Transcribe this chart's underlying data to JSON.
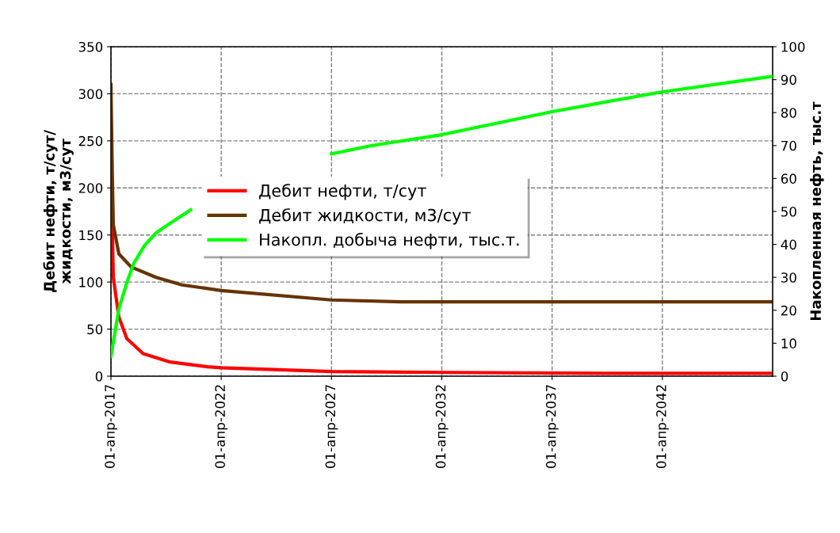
{
  "chart_data": {
    "type": "line",
    "ylabel": "Дебит нефти, т/сут/\nжидкости, м3/сут",
    "y2label": "Накопленная нефть, тыс.т",
    "xlim": [
      "2017-04-01",
      "2047-04-01"
    ],
    "xticks": [
      {
        "value": "2017-04-01",
        "label": "01-апр-2017"
      },
      {
        "value": "2022-04-01",
        "label": "01-апр-2022"
      },
      {
        "value": "2027-04-01",
        "label": "01-апр-2027"
      },
      {
        "value": "2032-04-01",
        "label": "01-апр-2032"
      },
      {
        "value": "2037-04-01",
        "label": "01-апр-2037"
      },
      {
        "value": "2042-04-01",
        "label": "01-апр-2042"
      }
    ],
    "ylim": [
      0,
      350
    ],
    "yticks": [
      0,
      50,
      100,
      150,
      200,
      250,
      300,
      350
    ],
    "y2lim": [
      0,
      100
    ],
    "y2ticks": [
      0,
      10,
      20,
      30,
      40,
      50,
      60,
      70,
      80,
      90,
      100
    ],
    "grid": true,
    "legend": "center left",
    "marker": "none",
    "line_style": "solid",
    "series": [
      {
        "name": "Дебит нефти, т/сут",
        "color": "#ff0000",
        "x": [
          "2017-04-01",
          "2017-04-23",
          "2017-05-10",
          "2017-08-10",
          "2017-12-20",
          "2018-09-15",
          "2019-12-10",
          "2021-08-20",
          "2022-04-01",
          "2027-04-01",
          "2032-05-01",
          "2040-01-15",
          "2047-04-01"
        ],
        "values": [
          215,
          161,
          105,
          63,
          40,
          24,
          15,
          10,
          9,
          5,
          4,
          3,
          3
        ]
      },
      {
        "name": "Дебит жидкости, м3/сут",
        "color": "#663300",
        "x": [
          "2017-04-01",
          "2017-04-23",
          "2017-05-10",
          "2017-08-10",
          "2018-03-01",
          "2019-04-20",
          "2020-06-20",
          "2022-04-01",
          "2027-04-01",
          "2030-06-01",
          "2047-04-01"
        ],
        "values": [
          310,
          217,
          161,
          130,
          116,
          105,
          97,
          91,
          81,
          79,
          79
        ]
      },
      {
        "name": "Накопл. добыча нефти, тыс.т.",
        "color": "#00ff00",
        "axis": "y2",
        "x": [
          "2017-04-01",
          "2017-06-05",
          "2017-08-10",
          "2017-12-20",
          "2018-04-10",
          "2018-10-10",
          "2019-04-20",
          "2020-01-15",
          "2020-11-10",
          "2022-04-01",
          "2027-04-01",
          "2029-02-01",
          "2032-04-01",
          "2037-04-01",
          "2042-04-01",
          "2047-04-01"
        ],
        "values": [
          6,
          13.2,
          20.4,
          28.4,
          34.1,
          39.7,
          43.5,
          46.9,
          50.5,
          null,
          67.5,
          70,
          73.3,
          80.3,
          86.3,
          91
        ]
      }
    ]
  }
}
